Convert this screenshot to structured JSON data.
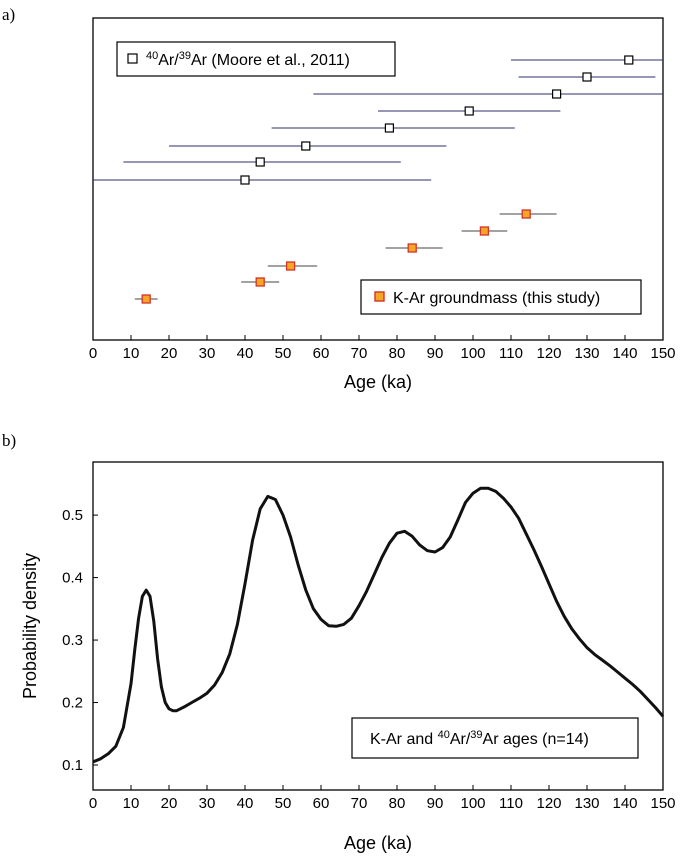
{
  "chart_data": [
    {
      "panel": "a)",
      "type": "scatter",
      "xlabel": "Age (ka)",
      "xlim": [
        0,
        150
      ],
      "xticks": [
        0,
        10,
        20,
        30,
        40,
        50,
        60,
        70,
        80,
        90,
        100,
        110,
        120,
        130,
        140,
        150
      ],
      "grid": false,
      "legend_placement": [
        "top-left",
        "bottom-right"
      ],
      "series": [
        {
          "name": "40Ar/39Ar (Moore et al., 2011)",
          "legend_parts": [
            {
              "text": "40",
              "sup": true
            },
            {
              "text": "Ar/",
              "sup": false
            },
            {
              "text": "39",
              "sup": true
            },
            {
              "text": "Ar (Moore et al., 2011)",
              "sup": false
            }
          ],
          "marker": "open-square",
          "color": "#000000",
          "errorbar_color": "#2b2f6b",
          "points": [
            {
              "x": 40,
              "xmin": 0,
              "xmax": 89
            },
            {
              "x": 44,
              "xmin": 8,
              "xmax": 81
            },
            {
              "x": 56,
              "xmin": 20,
              "xmax": 93
            },
            {
              "x": 78,
              "xmin": 47,
              "xmax": 111
            },
            {
              "x": 99,
              "xmin": 75,
              "xmax": 123
            },
            {
              "x": 122,
              "xmin": 58,
              "xmax": 150
            },
            {
              "x": 130,
              "xmin": 112,
              "xmax": 148
            },
            {
              "x": 141,
              "xmin": 110,
              "xmax": 150
            }
          ]
        },
        {
          "name": "K-Ar groundmass (this study)",
          "marker": "filled-square",
          "color": "#f5a623",
          "edge_color": "#d2332b",
          "errorbar_color": "#444444",
          "points": [
            {
              "x": 14,
              "xmin": 11,
              "xmax": 17
            },
            {
              "x": 44,
              "xmin": 39,
              "xmax": 49
            },
            {
              "x": 52,
              "xmin": 46,
              "xmax": 59
            },
            {
              "x": 84,
              "xmin": 77,
              "xmax": 92
            },
            {
              "x": 103,
              "xmin": 97,
              "xmax": 109
            },
            {
              "x": 114,
              "xmin": 107,
              "xmax": 122
            }
          ]
        }
      ]
    },
    {
      "panel": "b)",
      "type": "line",
      "xlabel": "Age (ka)",
      "ylabel": "Probability density",
      "xlim": [
        0,
        150
      ],
      "ylim": [
        0.06,
        0.585
      ],
      "xticks": [
        0,
        10,
        20,
        30,
        40,
        50,
        60,
        70,
        80,
        90,
        100,
        110,
        120,
        130,
        140,
        150
      ],
      "yticks": [
        0.1,
        0.2,
        0.3,
        0.4,
        0.5
      ],
      "ytick_labels": [
        "0.1",
        "0.2",
        "0.3",
        "0.4",
        "0.5"
      ],
      "grid": false,
      "legend_placement": "bottom-right",
      "legend_parts": [
        {
          "text": "K-Ar and ",
          "sup": false
        },
        {
          "text": "40",
          "sup": true
        },
        {
          "text": "Ar/",
          "sup": false
        },
        {
          "text": "39",
          "sup": true
        },
        {
          "text": "Ar ages (n=14)",
          "sup": false
        }
      ],
      "series": [
        {
          "name": "K-Ar and 40Ar/39Ar ages (n=14)",
          "color": "#111111",
          "x": [
            0,
            2,
            4,
            6,
            8,
            10,
            11,
            12,
            13,
            14,
            15,
            16,
            17,
            18,
            19,
            20,
            21,
            22,
            23,
            24,
            26,
            28,
            30,
            32,
            34,
            36,
            38,
            40,
            42,
            44,
            46,
            48,
            50,
            52,
            54,
            56,
            58,
            60,
            62,
            64,
            66,
            68,
            70,
            72,
            74,
            76,
            78,
            80,
            82,
            84,
            86,
            88,
            90,
            92,
            94,
            96,
            98,
            100,
            102,
            104,
            106,
            108,
            110,
            112,
            114,
            116,
            118,
            120,
            122,
            124,
            126,
            128,
            130,
            132,
            134,
            136,
            138,
            140,
            142,
            144,
            146,
            148,
            150
          ],
          "y": [
            0.105,
            0.11,
            0.118,
            0.13,
            0.16,
            0.23,
            0.285,
            0.335,
            0.37,
            0.38,
            0.37,
            0.33,
            0.27,
            0.225,
            0.2,
            0.19,
            0.187,
            0.187,
            0.19,
            0.193,
            0.2,
            0.207,
            0.215,
            0.228,
            0.248,
            0.278,
            0.325,
            0.39,
            0.46,
            0.51,
            0.53,
            0.525,
            0.5,
            0.465,
            0.42,
            0.38,
            0.35,
            0.333,
            0.323,
            0.322,
            0.325,
            0.335,
            0.355,
            0.378,
            0.405,
            0.432,
            0.455,
            0.471,
            0.474,
            0.466,
            0.452,
            0.443,
            0.441,
            0.448,
            0.465,
            0.492,
            0.52,
            0.535,
            0.543,
            0.543,
            0.538,
            0.527,
            0.513,
            0.495,
            0.47,
            0.445,
            0.418,
            0.39,
            0.362,
            0.338,
            0.318,
            0.302,
            0.288,
            0.277,
            0.268,
            0.259,
            0.249,
            0.239,
            0.229,
            0.218,
            0.205,
            0.192,
            0.178
          ]
        }
      ]
    }
  ]
}
